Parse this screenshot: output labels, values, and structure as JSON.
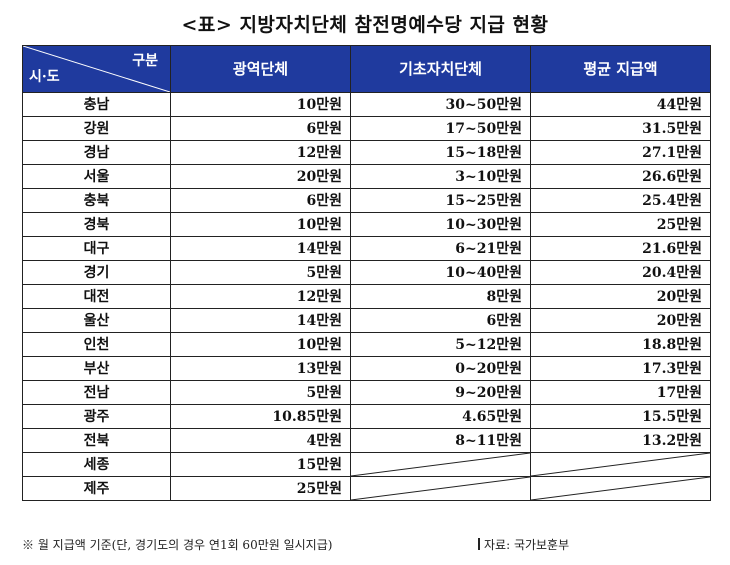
{
  "title": "<표> 지방자치단체 참전명예수당 지급 현황",
  "header": {
    "corner_top": "구분",
    "corner_bottom": "시·도",
    "col1": "광역단체",
    "col2": "기초자치단체",
    "col3": "평균 지급액"
  },
  "rows": [
    {
      "region": "충남",
      "metro": "10만원",
      "basic": "30~50만원",
      "avg": "44만원"
    },
    {
      "region": "강원",
      "metro": "6만원",
      "basic": "17~50만원",
      "avg": "31.5만원"
    },
    {
      "region": "경남",
      "metro": "12만원",
      "basic": "15~18만원",
      "avg": "27.1만원"
    },
    {
      "region": "서울",
      "metro": "20만원",
      "basic": "3~10만원",
      "avg": "26.6만원"
    },
    {
      "region": "충북",
      "metro": "6만원",
      "basic": "15~25만원",
      "avg": "25.4만원"
    },
    {
      "region": "경북",
      "metro": "10만원",
      "basic": "10~30만원",
      "avg": "25만원"
    },
    {
      "region": "대구",
      "metro": "14만원",
      "basic": "6~21만원",
      "avg": "21.6만원"
    },
    {
      "region": "경기",
      "metro": "5만원",
      "basic": "10~40만원",
      "avg": "20.4만원"
    },
    {
      "region": "대전",
      "metro": "12만원",
      "basic": "8만원",
      "avg": "20만원"
    },
    {
      "region": "울산",
      "metro": "14만원",
      "basic": "6만원",
      "avg": "20만원"
    },
    {
      "region": "인천",
      "metro": "10만원",
      "basic": "5~12만원",
      "avg": "18.8만원"
    },
    {
      "region": "부산",
      "metro": "13만원",
      "basic": "0~20만원",
      "avg": "17.3만원"
    },
    {
      "region": "전남",
      "metro": "5만원",
      "basic": "9~20만원",
      "avg": "17만원"
    },
    {
      "region": "광주",
      "metro": "10.85만원",
      "basic": "4.65만원",
      "avg": "15.5만원"
    },
    {
      "region": "전북",
      "metro": "4만원",
      "basic": "8~11만원",
      "avg": "13.2만원"
    }
  ],
  "empty_rows": [
    {
      "region": "세종",
      "metro": "15만원"
    },
    {
      "region": "제주",
      "metro": "25만원"
    }
  ],
  "footer": {
    "note": "※ 월 지급액 기준(단, 경기도의 경우 연1회 60만원 일시지급)",
    "source": "자료: 국가보훈부"
  },
  "colors": {
    "header_bg": "#1f3a9e",
    "header_text": "#ffffff"
  }
}
